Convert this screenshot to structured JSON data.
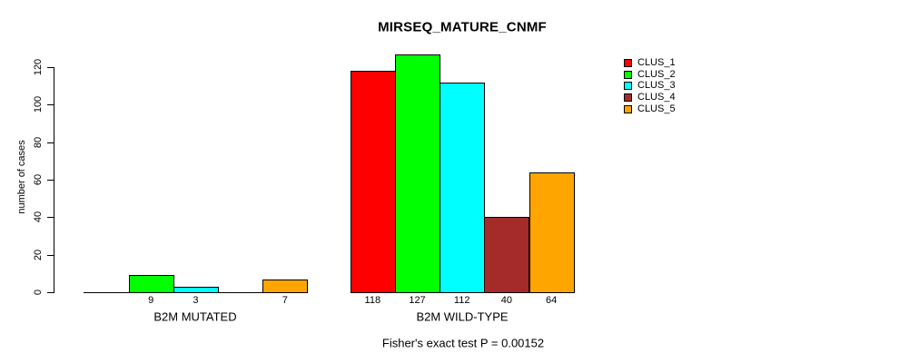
{
  "chart_data": {
    "type": "bar",
    "title": "MIRSEQ_MATURE_CNMF",
    "ylabel": "number of cases",
    "xlabel": "",
    "ylim": [
      0,
      130
    ],
    "yticks": [
      0,
      20,
      40,
      60,
      80,
      100,
      120
    ],
    "grid": false,
    "legend_position": "top-right",
    "legend": [
      {
        "name": "CLUS_1",
        "color": "#FF0000"
      },
      {
        "name": "CLUS_2",
        "color": "#00FF00"
      },
      {
        "name": "CLUS_3",
        "color": "#00FFFF"
      },
      {
        "name": "CLUS_4",
        "color": "#A52A2A"
      },
      {
        "name": "CLUS_5",
        "color": "#FFA500"
      }
    ],
    "groups": [
      {
        "label": "B2M MUTATED",
        "values": [
          0,
          9,
          3,
          0,
          7
        ],
        "bar_labels": [
          "",
          "9",
          "3",
          "",
          "7"
        ]
      },
      {
        "label": "B2M WILD-TYPE",
        "values": [
          118,
          127,
          112,
          40,
          64
        ],
        "bar_labels": [
          "118",
          "127",
          "112",
          "40",
          "64"
        ]
      }
    ],
    "annotation": "Fisher's exact test P = 0.00152",
    "bar_border_color": "#000000",
    "axis_color": "#000000",
    "background_color": "#FFFFFF"
  }
}
